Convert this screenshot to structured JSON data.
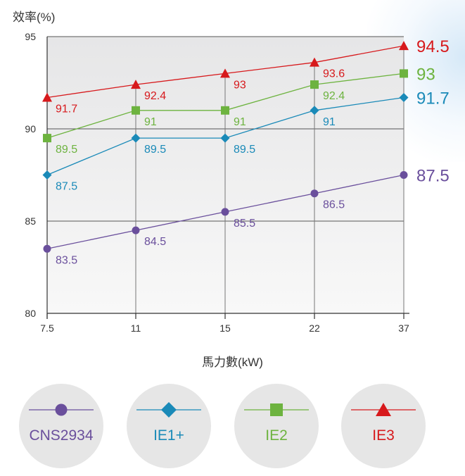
{
  "chart_data": {
    "type": "line",
    "ylabel": "效率(%)",
    "xlabel": "馬力數(kW)",
    "categories": [
      "7.5",
      "11",
      "15",
      "22",
      "37"
    ],
    "ylim": [
      80,
      95
    ],
    "yticks": [
      80,
      85,
      90,
      95
    ],
    "grid": true,
    "series": [
      {
        "name": "CNS2934",
        "values": [
          83.5,
          84.5,
          85.5,
          86.5,
          87.5
        ],
        "labels": [
          "83.5",
          "84.5",
          "85.5",
          "86.5",
          "87.5"
        ],
        "end_label": "87.5",
        "color": "#6a4f9c",
        "marker": "circle"
      },
      {
        "name": "IE1+",
        "values": [
          87.5,
          89.5,
          89.5,
          91,
          91.7
        ],
        "labels": [
          "87.5",
          "89.5",
          "89.5",
          "91",
          "91.7"
        ],
        "end_label": "91.7",
        "color": "#1a8ab8",
        "marker": "diamond"
      },
      {
        "name": "IE2",
        "values": [
          89.5,
          91,
          91,
          92.4,
          93
        ],
        "labels": [
          "89.5",
          "91",
          "91",
          "92.4",
          "93"
        ],
        "end_label": "93",
        "color": "#6db33f",
        "marker": "square"
      },
      {
        "name": "IE3",
        "values": [
          91.7,
          92.4,
          93,
          93.6,
          94.5
        ],
        "labels": [
          "91.7",
          "92.4",
          "93",
          "93.6",
          "94.5"
        ],
        "end_label": "94.5",
        "color": "#d7191c",
        "marker": "triangle"
      }
    ]
  },
  "legend": [
    {
      "label": "CNS2934",
      "color": "#6a4f9c",
      "marker": "circle"
    },
    {
      "label": "IE1+",
      "color": "#1a8ab8",
      "marker": "diamond"
    },
    {
      "label": "IE2",
      "color": "#6db33f",
      "marker": "square"
    },
    {
      "label": "IE3",
      "color": "#d7191c",
      "marker": "triangle"
    }
  ]
}
